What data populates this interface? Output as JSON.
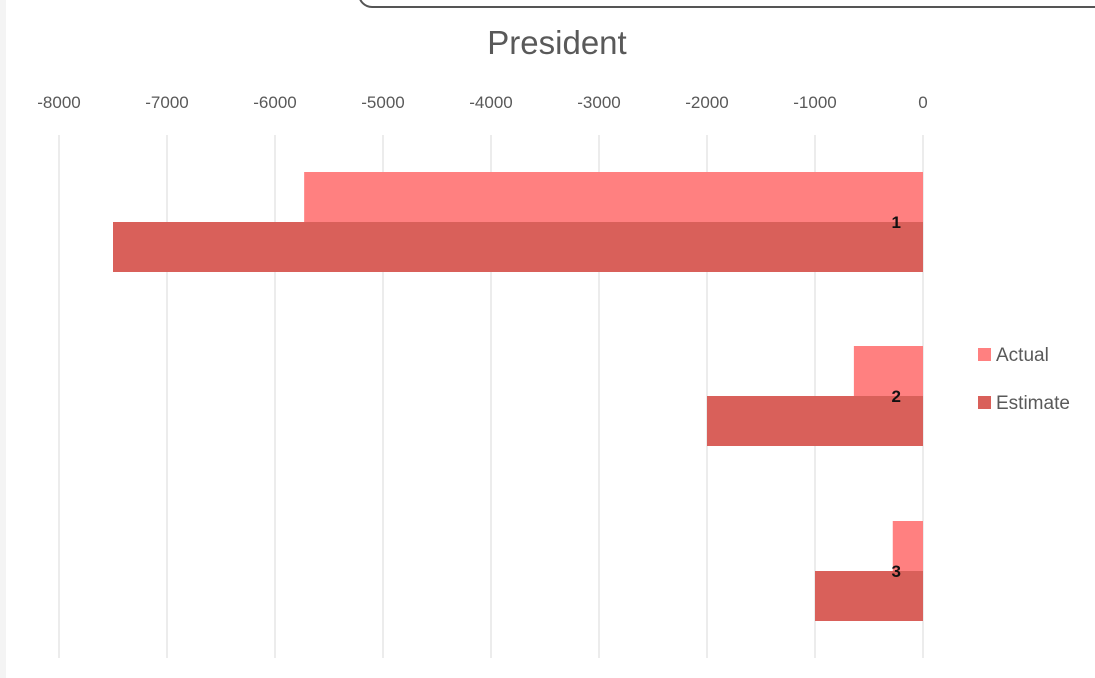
{
  "chart_data": {
    "type": "bar",
    "orientation": "horizontal",
    "title": "President",
    "xlabel": "",
    "ylabel": "",
    "xlim": [
      -8000,
      0
    ],
    "x_ticks": [
      -8000,
      -7000,
      -6000,
      -5000,
      -4000,
      -3000,
      -2000,
      -1000,
      0
    ],
    "x_tick_labels": [
      "-8000",
      "-7000",
      "-6000",
      "-5000",
      "-4000",
      "-3000",
      "-2000",
      "-1000",
      "0"
    ],
    "axis_position": "top",
    "grid": true,
    "categories": [
      "1",
      "2",
      "3"
    ],
    "series": [
      {
        "name": "Actual",
        "color": "#ff8080",
        "values": [
          -5730,
          -640,
          -280
        ]
      },
      {
        "name": "Estimate",
        "color": "#d9605a",
        "values": [
          -7500,
          -2000,
          -1000
        ]
      }
    ],
    "legend": {
      "placement": "right"
    }
  }
}
